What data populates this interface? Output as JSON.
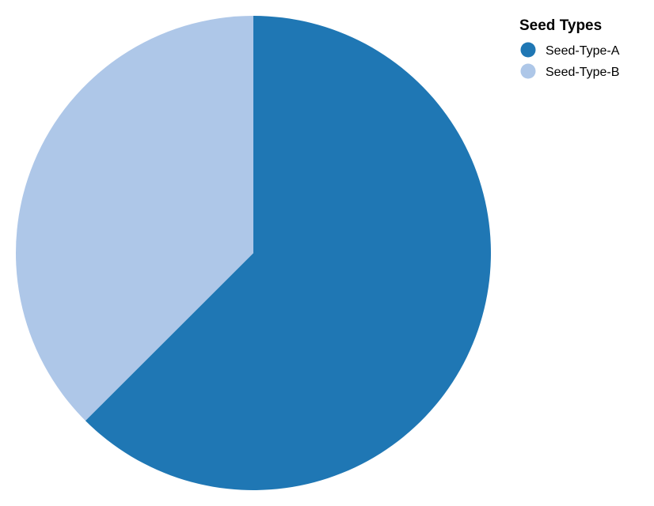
{
  "chart_data": {
    "type": "pie",
    "title": "",
    "legend": {
      "title": "Seed Types",
      "position": "top-right"
    },
    "start_angle_deg": 0,
    "direction": "clockwise",
    "slices": [
      {
        "name": "Seed-Type-A",
        "value": 62.5,
        "color": "#1f77b4"
      },
      {
        "name": "Seed-Type-B",
        "value": 37.5,
        "color": "#aec7e8"
      }
    ]
  }
}
